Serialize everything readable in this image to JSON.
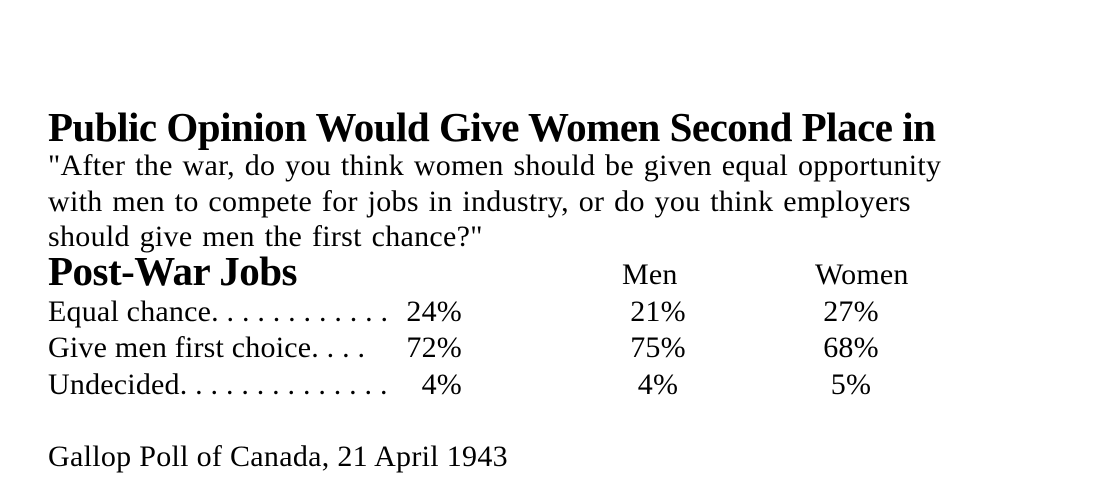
{
  "document": {
    "title_line1": "Public Opinion Would Give Women Second Place in",
    "title_line2": "Post-War Jobs",
    "question_lines": [
      "\"After the war, do you think women should be given equal opportunity",
      "with men to compete for jobs in industry, or do you think employers",
      "should give men the first chance?\""
    ],
    "source": "Gallop Poll of Canada, 21 April 1943"
  },
  "table": {
    "columns": {
      "men": "Men",
      "women": "Women"
    },
    "rows": [
      {
        "label": "Equal chance",
        "dots": ". . . . . . . . . . . .",
        "total": "24%",
        "men": "21%",
        "women": "27%"
      },
      {
        "label": "Give men first choice",
        "dots": ". . . .",
        "total": "72%",
        "men": "75%",
        "women": "68%"
      },
      {
        "label": "Undecided",
        "dots": ". . . . . . . . . . . . . .",
        "total": "4%",
        "men": "4%",
        "women": "5%"
      }
    ]
  },
  "chart_data": {
    "type": "table",
    "title": "Public Opinion Would Give Women Second Place in Post-War Jobs",
    "question": "\"After the war, do you think women should be given equal opportunity with men to compete for jobs in industry, or do you think employers should give men the first chance?\"",
    "columns": [
      "",
      "",
      "Men",
      "Women"
    ],
    "rows": [
      [
        "Equal chance",
        "24%",
        "21%",
        "27%"
      ],
      [
        "Give men first choice",
        "72%",
        "75%",
        "68%"
      ],
      [
        "Undecided",
        "4%",
        "4%",
        "5%"
      ]
    ],
    "source": "Gallop Poll of Canada, 21 April 1943"
  },
  "colors": {
    "text": "#000000",
    "background": "#ffffff"
  }
}
